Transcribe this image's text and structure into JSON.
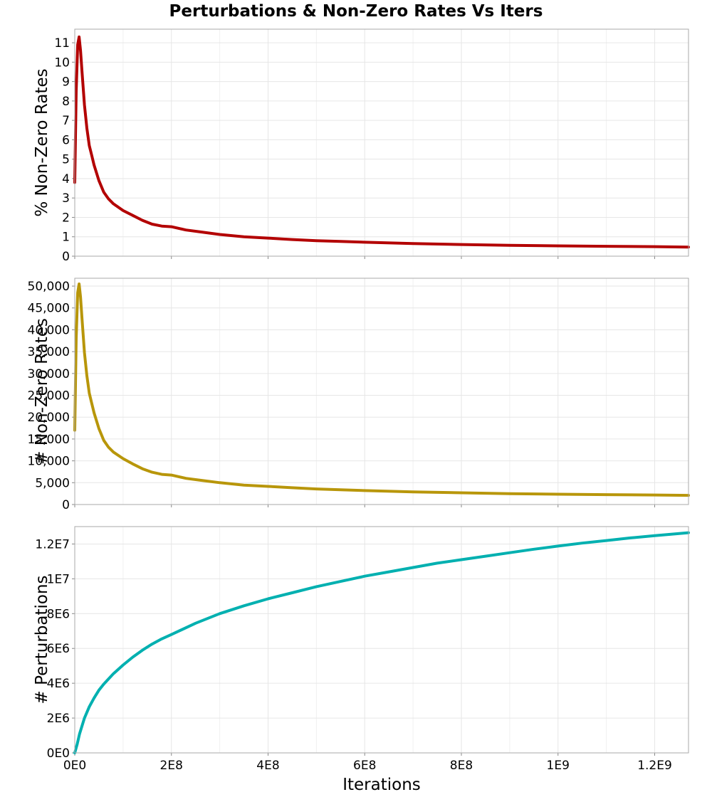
{
  "chart_data": {
    "type": "line",
    "title": "Perturbations & Non-Zero Rates Vs Iters",
    "xlabel": "Iterations",
    "xlim": [
      0,
      1270000000
    ],
    "xticks": [
      0,
      200000000,
      400000000,
      600000000,
      800000000,
      1000000000,
      1200000000
    ],
    "xtick_labels": [
      "0E0",
      "2E8",
      "4E8",
      "6E8",
      "8E8",
      "1E9",
      "1.2E9"
    ],
    "grid": true,
    "panels": [
      {
        "name": "pct-nonzero-rates",
        "ylabel": "% Non-Zero Rates",
        "color": "#b30000",
        "ylim": [
          0,
          11.7
        ],
        "yticks": [
          0,
          1,
          2,
          3,
          4,
          5,
          6,
          7,
          8,
          9,
          10,
          11
        ],
        "ytick_labels": [
          "0",
          "1",
          "2",
          "3",
          "4",
          "5",
          "6",
          "7",
          "8",
          "9",
          "10",
          "11"
        ],
        "x": [
          0,
          3000000,
          6000000,
          9000000,
          12000000,
          15000000,
          20000000,
          25000000,
          30000000,
          35000000,
          40000000,
          50000000,
          60000000,
          70000000,
          80000000,
          100000000,
          120000000,
          140000000,
          160000000,
          180000000,
          200000000,
          230000000,
          260000000,
          300000000,
          350000000,
          400000000,
          450000000,
          500000000,
          550000000,
          600000000,
          700000000,
          800000000,
          900000000,
          1000000000,
          1100000000,
          1200000000,
          1270000000
        ],
        "y": [
          3.8,
          8.5,
          10.9,
          11.3,
          10.6,
          9.5,
          7.8,
          6.6,
          5.7,
          5.2,
          4.7,
          3.9,
          3.3,
          2.95,
          2.7,
          2.35,
          2.1,
          1.85,
          1.65,
          1.55,
          1.52,
          1.35,
          1.25,
          1.12,
          1.0,
          0.93,
          0.86,
          0.8,
          0.76,
          0.72,
          0.65,
          0.6,
          0.56,
          0.53,
          0.51,
          0.49,
          0.47
        ]
      },
      {
        "name": "count-nonzero-rates",
        "ylabel": "# Non-Zero Rates",
        "color": "#b8960a",
        "ylim": [
          0,
          51800
        ],
        "yticks": [
          0,
          5000,
          10000,
          15000,
          20000,
          25000,
          30000,
          35000,
          40000,
          45000,
          50000
        ],
        "ytick_labels": [
          "0",
          "5,000",
          "10,000",
          "15,000",
          "20,000",
          "25,000",
          "30,000",
          "35,000",
          "40,000",
          "45,000",
          "50,000"
        ],
        "x": [
          0,
          3000000,
          6000000,
          9000000,
          12000000,
          15000000,
          20000000,
          25000000,
          30000000,
          35000000,
          40000000,
          50000000,
          60000000,
          70000000,
          80000000,
          100000000,
          120000000,
          140000000,
          160000000,
          180000000,
          200000000,
          230000000,
          260000000,
          300000000,
          350000000,
          400000000,
          450000000,
          500000000,
          550000000,
          600000000,
          700000000,
          800000000,
          900000000,
          1000000000,
          1100000000,
          1200000000,
          1270000000
        ],
        "y": [
          17000,
          38000,
          48500,
          50500,
          47500,
          42500,
          34800,
          29500,
          25500,
          23200,
          21000,
          17400,
          14700,
          13100,
          12000,
          10500,
          9300,
          8200,
          7400,
          6900,
          6750,
          6000,
          5550,
          5000,
          4450,
          4150,
          3850,
          3560,
          3380,
          3200,
          2900,
          2680,
          2500,
          2370,
          2270,
          2180,
          2100
        ]
      },
      {
        "name": "perturbations",
        "ylabel": "# Perturbations",
        "color": "#00b0b0",
        "ylim": [
          0,
          13000000
        ],
        "yticks": [
          0,
          2000000,
          4000000,
          6000000,
          8000000,
          10000000,
          12000000
        ],
        "ytick_labels": [
          "0E0",
          "2E6",
          "4E6",
          "6E6",
          "8E6",
          "1E7",
          "1.2E7"
        ],
        "x": [
          0,
          5000000,
          10000000,
          20000000,
          30000000,
          40000000,
          50000000,
          60000000,
          80000000,
          100000000,
          120000000,
          140000000,
          160000000,
          180000000,
          200000000,
          250000000,
          300000000,
          350000000,
          400000000,
          450000000,
          500000000,
          550000000,
          600000000,
          650000000,
          700000000,
          750000000,
          800000000,
          850000000,
          900000000,
          950000000,
          1000000000,
          1050000000,
          1100000000,
          1150000000,
          1200000000,
          1270000000
        ],
        "y": [
          0,
          500000,
          1100000,
          2000000,
          2650000,
          3150000,
          3600000,
          3950000,
          4550000,
          5050000,
          5500000,
          5900000,
          6250000,
          6550000,
          6800000,
          7450000,
          8000000,
          8450000,
          8850000,
          9200000,
          9550000,
          9850000,
          10150000,
          10400000,
          10650000,
          10900000,
          11100000,
          11300000,
          11500000,
          11700000,
          11880000,
          12050000,
          12200000,
          12350000,
          12480000,
          12650000
        ]
      }
    ]
  }
}
